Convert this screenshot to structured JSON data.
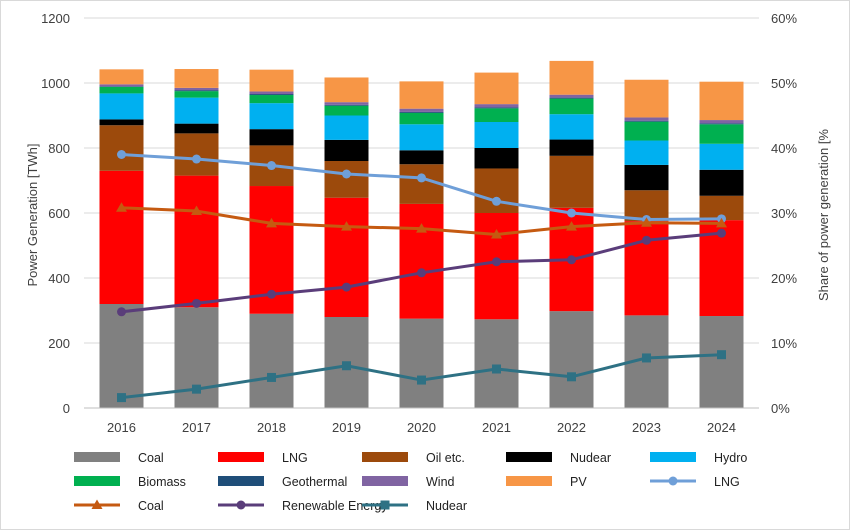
{
  "chart_data": {
    "type": "bar",
    "categories": [
      "2016",
      "2017",
      "2018",
      "2019",
      "2020",
      "2021",
      "2022",
      "2023",
      "2024"
    ],
    "ylabel": "Power Generation [TWh]",
    "y2label": "Share of power generation [%",
    "ylim": [
      0,
      1200
    ],
    "y2lim": [
      0,
      60
    ],
    "yticks": [
      "0",
      "200",
      "400",
      "600",
      "800",
      "1000",
      "1200"
    ],
    "y2ticks": [
      "0%",
      "10%",
      "20%",
      "30%",
      "40%",
      "50%",
      "60%"
    ],
    "grid": true,
    "legend_position": "bottom",
    "bar_series": [
      {
        "name": "Coal",
        "color": "#808080",
        "values": [
          320,
          310,
          290,
          280,
          275,
          273,
          298,
          285,
          283
        ]
      },
      {
        "name": "LNG",
        "color": "#ff0000",
        "values": [
          410,
          405,
          393,
          367,
          353,
          327,
          318,
          290,
          295
        ]
      },
      {
        "name": "Oil etc.",
        "color": "#9c4a0c",
        "values": [
          140,
          130,
          125,
          113,
          122,
          137,
          160,
          95,
          75
        ]
      },
      {
        "name": "Nudear",
        "color": "#000000",
        "values": [
          18,
          30,
          50,
          65,
          43,
          63,
          50,
          78,
          80
        ]
      },
      {
        "name": "Hydro",
        "color": "#00b0f0",
        "values": [
          80,
          80,
          80,
          75,
          80,
          80,
          78,
          75,
          80
        ]
      },
      {
        "name": "Biomass",
        "color": "#00b050",
        "values": [
          20,
          20,
          25,
          30,
          35,
          42,
          48,
          58,
          60
        ]
      },
      {
        "name": "Geothermal",
        "color": "#1f4e79",
        "values": [
          2,
          3,
          3,
          3,
          3,
          3,
          3,
          3,
          3
        ]
      },
      {
        "name": "Wind",
        "color": "#8064a2",
        "values": [
          6,
          7,
          8,
          8,
          10,
          10,
          9,
          10,
          10
        ]
      },
      {
        "name": "PV",
        "color": "#f79646",
        "values": [
          46,
          58,
          67,
          76,
          84,
          97,
          104,
          116,
          118
        ]
      }
    ],
    "line_series": [
      {
        "name": "LNG",
        "color": "#6f9fd8",
        "marker": "circle",
        "values": [
          39.0,
          38.3,
          37.3,
          36.0,
          35.4,
          31.8,
          30.0,
          29.0,
          29.1
        ]
      },
      {
        "name": "Coal",
        "color": "#c55a11",
        "marker": "triangle",
        "values": [
          30.8,
          30.3,
          28.4,
          27.9,
          27.6,
          26.7,
          27.9,
          28.5,
          28.4
        ]
      },
      {
        "name": "Renewable Energy",
        "color": "#5a3d7a",
        "marker": "circle",
        "values": [
          14.8,
          16.1,
          17.5,
          18.6,
          20.8,
          22.5,
          22.8,
          25.8,
          26.9
        ]
      },
      {
        "name": "Nudear",
        "color": "#2e7184",
        "marker": "square",
        "values": [
          1.6,
          2.9,
          4.7,
          6.5,
          4.3,
          6.0,
          4.8,
          7.7,
          8.2
        ]
      }
    ]
  },
  "legend_items": [
    {
      "label": "Coal",
      "kind": "box",
      "color": "#808080"
    },
    {
      "label": "LNG",
      "kind": "box",
      "color": "#ff0000"
    },
    {
      "label": "Oil etc.",
      "kind": "box",
      "color": "#9c4a0c"
    },
    {
      "label": "Nudear",
      "kind": "box",
      "color": "#000000"
    },
    {
      "label": "Hydro",
      "kind": "box",
      "color": "#00b0f0"
    },
    {
      "label": "Biomass",
      "kind": "box",
      "color": "#00b050"
    },
    {
      "label": "Geothermal",
      "kind": "box",
      "color": "#1f4e79"
    },
    {
      "label": "Wind",
      "kind": "box",
      "color": "#8064a2"
    },
    {
      "label": "PV",
      "kind": "box",
      "color": "#f79646"
    },
    {
      "label": "LNG",
      "kind": "line",
      "marker": "circle",
      "color": "#6f9fd8"
    },
    {
      "label": "Coal",
      "kind": "line",
      "marker": "triangle",
      "color": "#c55a11"
    },
    {
      "label": "Renewable Energy",
      "kind": "line",
      "marker": "circle",
      "color": "#5a3d7a"
    },
    {
      "label": "Nudear",
      "kind": "line",
      "marker": "square",
      "color": "#2e7184"
    }
  ]
}
